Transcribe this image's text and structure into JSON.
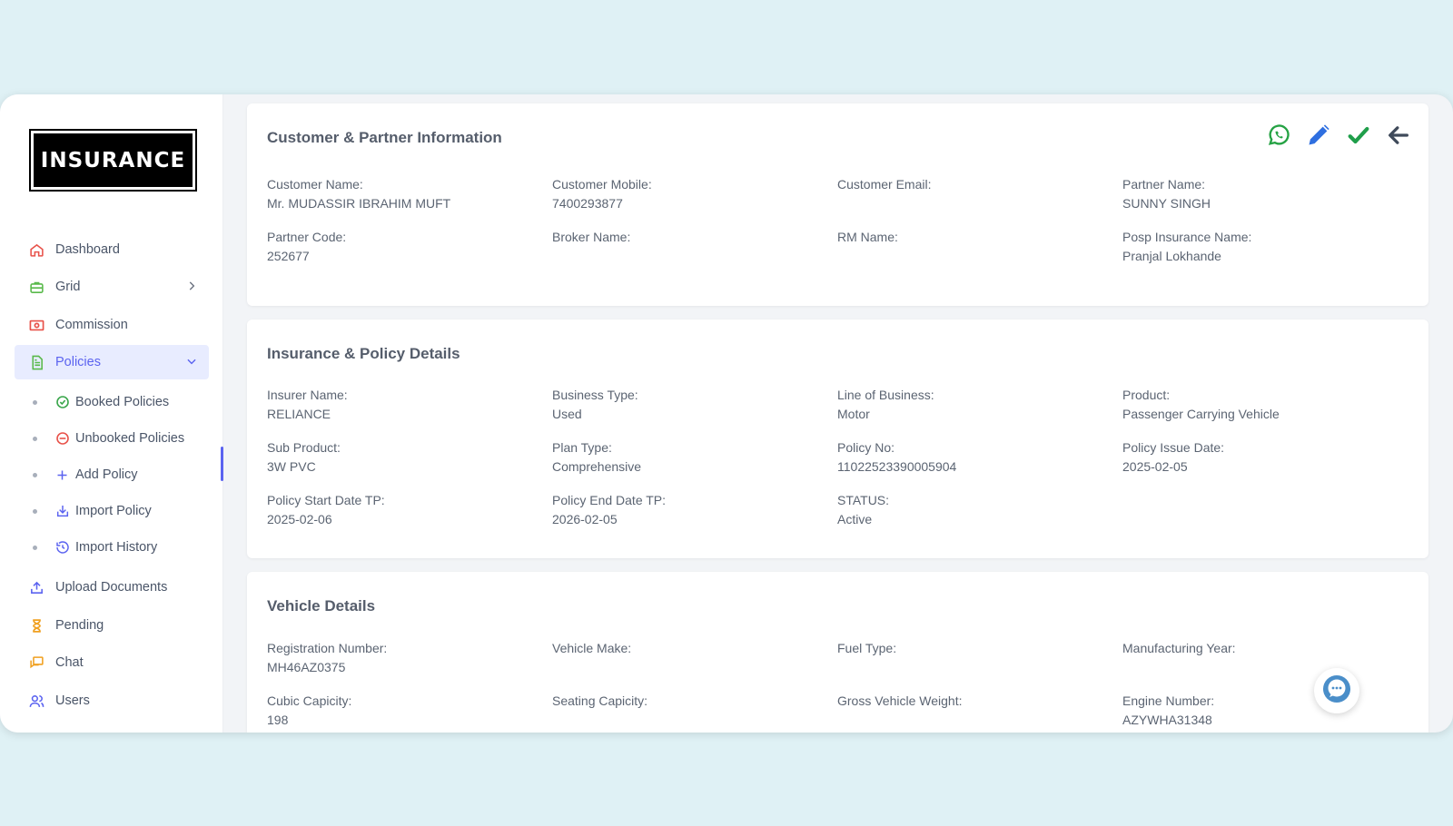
{
  "app": {
    "logo_text": "INSURANCE"
  },
  "sidebar": {
    "items": [
      {
        "label": "Dashboard",
        "icon": "home-icon"
      },
      {
        "label": "Grid",
        "icon": "briefcase-icon"
      },
      {
        "label": "Commission",
        "icon": "money-icon"
      },
      {
        "label": "Policies",
        "icon": "document-icon"
      },
      {
        "label": "Upload Documents",
        "icon": "upload-icon"
      },
      {
        "label": "Pending",
        "icon": "hourglass-icon"
      },
      {
        "label": "Chat",
        "icon": "chat-icon"
      },
      {
        "label": "Users",
        "icon": "users-icon"
      }
    ],
    "policies_sub": [
      {
        "label": "Booked Policies",
        "icon": "check-circle-icon"
      },
      {
        "label": "Unbooked Policies",
        "icon": "minus-circle-icon"
      },
      {
        "label": "Add Policy",
        "icon": "plus-icon"
      },
      {
        "label": "Import Policy",
        "icon": "import-icon"
      },
      {
        "label": "Import History",
        "icon": "history-icon"
      }
    ],
    "active_item": "Policies"
  },
  "customer_card": {
    "title": "Customer & Partner Information",
    "fields": [
      {
        "label": "Customer Name:",
        "value": "Mr. MUDASSIR IBRAHIM MUFT"
      },
      {
        "label": "Customer Mobile:",
        "value": "7400293877"
      },
      {
        "label": "Customer Email:",
        "value": ""
      },
      {
        "label": "Partner Name:",
        "value": "SUNNY SINGH"
      },
      {
        "label": "Partner Code:",
        "value": "252677"
      },
      {
        "label": "Broker Name:",
        "value": ""
      },
      {
        "label": "RM Name:",
        "value": ""
      },
      {
        "label": "Posp Insurance Name:",
        "value": "Pranjal Lokhande"
      }
    ],
    "actions": [
      "whatsapp-icon",
      "edit-icon",
      "check-icon",
      "back-arrow-icon"
    ]
  },
  "policy_card": {
    "title": "Insurance & Policy Details",
    "fields": [
      {
        "label": "Insurer Name:",
        "value": "RELIANCE"
      },
      {
        "label": "Business Type:",
        "value": "Used"
      },
      {
        "label": "Line of Business:",
        "value": "Motor"
      },
      {
        "label": "Product:",
        "value": "Passenger Carrying Vehicle"
      },
      {
        "label": "Sub Product:",
        "value": "3W PVC"
      },
      {
        "label": "Plan Type:",
        "value": "Comprehensive"
      },
      {
        "label": "Policy No:",
        "value": "11022523390005904"
      },
      {
        "label": "Policy Issue Date:",
        "value": "2025-02-05"
      },
      {
        "label": "Policy Start Date TP:",
        "value": "2025-02-06"
      },
      {
        "label": "Policy End Date TP:",
        "value": "2026-02-05"
      },
      {
        "label": "STATUS:",
        "value": "Active"
      }
    ]
  },
  "vehicle_card": {
    "title": "Vehicle Details",
    "fields": [
      {
        "label": "Registration Number:",
        "value": "MH46AZ0375"
      },
      {
        "label": "Vehicle Make:",
        "value": ""
      },
      {
        "label": "Fuel Type:",
        "value": ""
      },
      {
        "label": "Manufacturing Year:",
        "value": ""
      },
      {
        "label": "Cubic Capicity:",
        "value": "198"
      },
      {
        "label": "Seating Capicity:",
        "value": ""
      },
      {
        "label": "Gross Vehicle Weight:",
        "value": ""
      },
      {
        "label": "Engine Number:",
        "value": "AZYWHA31348"
      }
    ]
  },
  "colors": {
    "accent": "#5b63f0",
    "whatsapp": "#25a244",
    "edit": "#2f6fe0",
    "check": "#1f9e4a",
    "back": "#3f4a5a"
  }
}
